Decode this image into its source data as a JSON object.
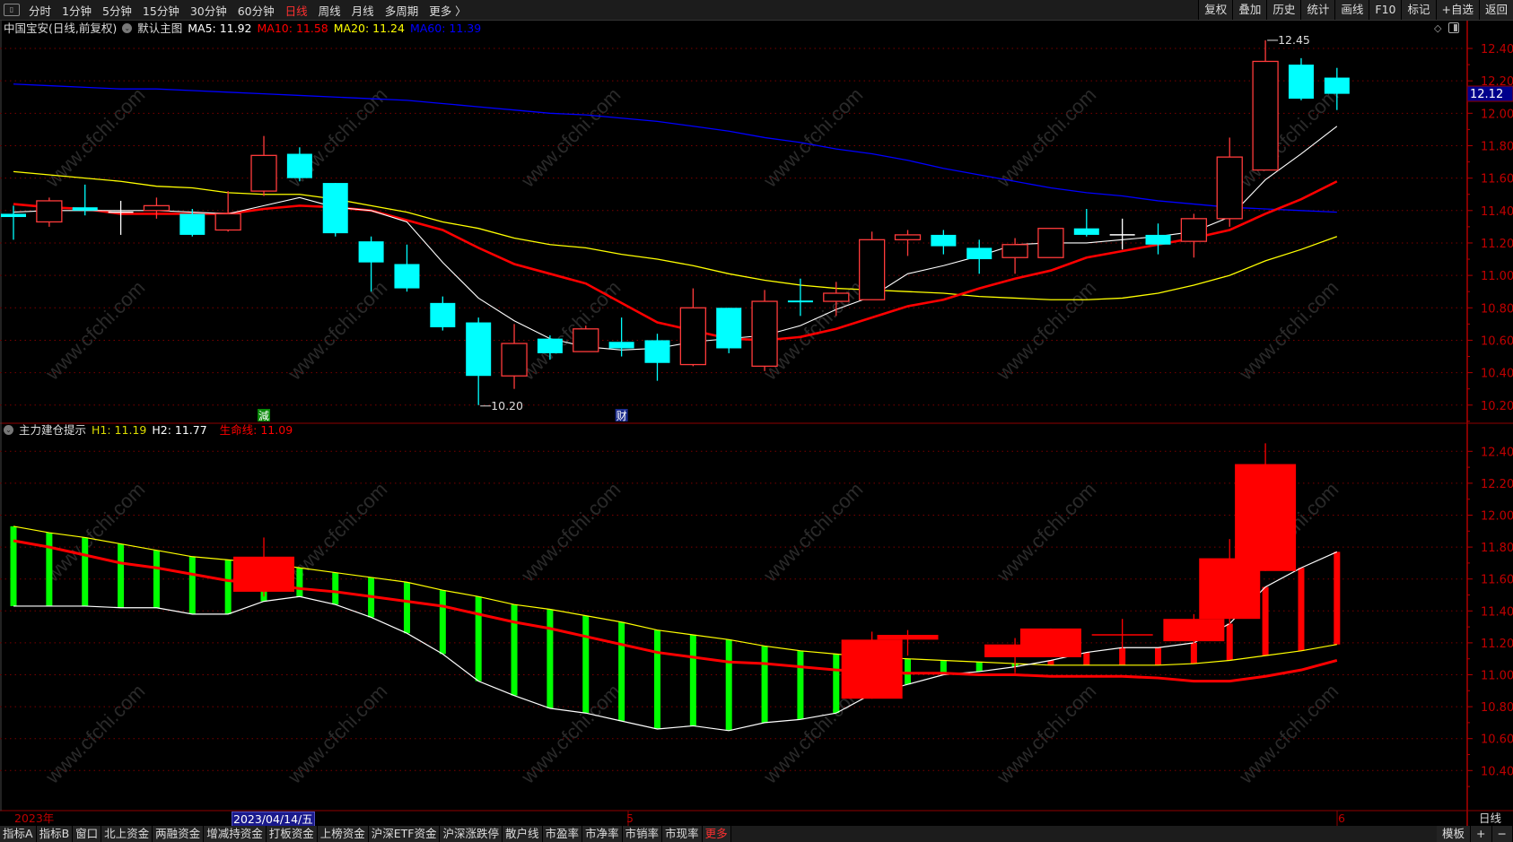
{
  "toolbar": {
    "periods": [
      "分时",
      "1分钟",
      "5分钟",
      "15分钟",
      "30分钟",
      "60分钟",
      "日线",
      "周线",
      "月线",
      "多周期",
      "更多 〉"
    ],
    "active_period": "日线",
    "right_buttons": [
      "复权",
      "叠加",
      "历史",
      "统计",
      "画线",
      "F10",
      "标记",
      "+自选",
      "返回"
    ]
  },
  "main_panel": {
    "title": "中国宝安(日线,前复权)",
    "template": "默认主图",
    "ma5": "MA5: 11.92",
    "ma10": "MA10: 11.58",
    "ma20": "MA20: 11.24",
    "ma60": "MA60: 11.39",
    "current_price": "12.12",
    "high_label": "12.45",
    "low_label": "10.20",
    "markers": [
      {
        "text": "減",
        "candle": 7,
        "color": "#0a8a0a"
      },
      {
        "text": "财",
        "candle": 17,
        "color": "#1c2c8c"
      }
    ],
    "y_ticks": [
      "12.40",
      "12.20",
      "12.00",
      "11.80",
      "11.60",
      "11.40",
      "11.20",
      "11.00",
      "10.80",
      "10.60",
      "10.40",
      "10.20"
    ]
  },
  "sub_panel": {
    "title": "主力建仓提示",
    "h1": "H1: 11.19",
    "h2": "H2: 11.77",
    "life": "生命线: 11.09",
    "y_ticks": [
      "12.40",
      "12.20",
      "12.00",
      "11.80",
      "11.60",
      "11.40",
      "11.20",
      "11.00",
      "10.80",
      "10.60",
      "10.40"
    ]
  },
  "date_axis": {
    "year": "2023年",
    "cursor_date": "2023/04/14/五",
    "month5": "5",
    "month6": "6",
    "period_label": "日线"
  },
  "bottom_tabs": [
    "指标A",
    "指标B",
    "窗口",
    "北上资金",
    "两融资金",
    "增减持资金",
    "打板资金",
    "上榜资金",
    "沪深ETF资金",
    "沪深涨跌停",
    "散户线",
    "市盈率",
    "市净率",
    "市销率",
    "市现率",
    "更多"
  ],
  "bottom_right": [
    "模板",
    "+",
    "−"
  ],
  "watermark": "www.cfchi.com",
  "colors": {
    "up": "#ff3b3b",
    "down": "#00ffff",
    "ma5": "#ffffff",
    "ma10": "#ff0000",
    "ma20": "#ffff00",
    "ma60": "#0000ff",
    "axis": "#b00000",
    "h1": "#ffff00",
    "h2": "#ffffff",
    "life": "#ff0000",
    "bar_up": "#ff0000",
    "bar_down": "#00ff00"
  },
  "chart_data": {
    "type": "candlestick",
    "candles_ohlc": [
      [
        11.38,
        11.43,
        11.22,
        11.36
      ],
      [
        11.33,
        11.48,
        11.3,
        11.46
      ],
      [
        11.42,
        11.56,
        11.37,
        11.4
      ],
      [
        11.39,
        11.46,
        11.25,
        11.39
      ],
      [
        11.4,
        11.48,
        11.35,
        11.43
      ],
      [
        11.38,
        11.41,
        11.24,
        11.25
      ],
      [
        11.28,
        11.52,
        11.27,
        11.38
      ],
      [
        11.52,
        11.86,
        11.49,
        11.74
      ],
      [
        11.75,
        11.79,
        11.58,
        11.6
      ],
      [
        11.57,
        11.57,
        11.24,
        11.26
      ],
      [
        11.21,
        11.24,
        10.9,
        11.08
      ],
      [
        11.07,
        11.19,
        10.9,
        10.92
      ],
      [
        10.83,
        10.87,
        10.66,
        10.68
      ],
      [
        10.71,
        10.74,
        10.2,
        10.38
      ],
      [
        10.38,
        10.7,
        10.3,
        10.58
      ],
      [
        10.61,
        10.63,
        10.48,
        10.52
      ],
      [
        10.53,
        10.69,
        10.53,
        10.67
      ],
      [
        10.59,
        10.74,
        10.5,
        10.55
      ],
      [
        10.6,
        10.64,
        10.35,
        10.46
      ],
      [
        10.45,
        10.92,
        10.44,
        10.8
      ],
      [
        10.8,
        10.8,
        10.52,
        10.55
      ],
      [
        10.44,
        10.91,
        10.41,
        10.84
      ],
      [
        10.845,
        10.98,
        10.75,
        10.84
      ],
      [
        10.84,
        10.96,
        10.75,
        10.89
      ],
      [
        10.85,
        11.27,
        10.85,
        11.22
      ],
      [
        11.22,
        11.28,
        11.12,
        11.25
      ],
      [
        11.25,
        11.28,
        11.13,
        11.18
      ],
      [
        11.17,
        11.22,
        11.01,
        11.1
      ],
      [
        11.11,
        11.23,
        11.01,
        11.19
      ],
      [
        11.11,
        11.29,
        11.11,
        11.29
      ],
      [
        11.29,
        11.41,
        11.24,
        11.25
      ],
      [
        11.25,
        11.35,
        11.16,
        11.25
      ],
      [
        11.25,
        11.32,
        11.13,
        11.19
      ],
      [
        11.21,
        11.38,
        11.11,
        11.35
      ],
      [
        11.35,
        11.85,
        11.3,
        11.73
      ],
      [
        11.65,
        12.45,
        11.65,
        12.32
      ],
      [
        12.3,
        12.34,
        12.08,
        12.09
      ],
      [
        12.22,
        12.28,
        12.02,
        12.12
      ]
    ],
    "ma5": [
      11.39,
      11.4,
      11.4,
      11.4,
      11.4,
      11.39,
      11.38,
      11.43,
      11.48,
      11.42,
      11.4,
      11.33,
      11.08,
      10.86,
      10.72,
      10.61,
      10.56,
      10.54,
      10.55,
      10.59,
      10.61,
      10.63,
      10.69,
      10.79,
      10.87,
      11.01,
      11.06,
      11.12,
      11.19,
      11.2,
      11.2,
      11.22,
      11.24,
      11.27,
      11.36,
      11.59,
      11.75,
      11.92
    ],
    "ma10": [
      11.44,
      11.42,
      11.41,
      11.38,
      11.38,
      11.38,
      11.38,
      11.41,
      11.43,
      11.42,
      11.4,
      11.34,
      11.28,
      11.17,
      11.07,
      11.01,
      10.95,
      10.83,
      10.71,
      10.66,
      10.61,
      10.6,
      10.62,
      10.67,
      10.74,
      10.81,
      10.85,
      10.92,
      10.98,
      11.03,
      11.11,
      11.15,
      11.19,
      11.23,
      11.28,
      11.38,
      11.47,
      11.58
    ],
    "ma20": [
      11.64,
      11.62,
      11.6,
      11.58,
      11.55,
      11.54,
      11.51,
      11.5,
      11.5,
      11.47,
      11.43,
      11.39,
      11.33,
      11.29,
      11.23,
      11.19,
      11.17,
      11.13,
      11.1,
      11.06,
      11.01,
      10.97,
      10.94,
      10.92,
      10.91,
      10.9,
      10.89,
      10.87,
      10.86,
      10.85,
      10.85,
      10.86,
      10.89,
      10.94,
      11.0,
      11.09,
      11.16,
      11.24
    ],
    "ma60": [
      12.18,
      12.17,
      12.16,
      12.15,
      12.15,
      12.14,
      12.13,
      12.12,
      12.11,
      12.1,
      12.09,
      12.08,
      12.06,
      12.04,
      12.02,
      12.0,
      11.99,
      11.97,
      11.95,
      11.92,
      11.89,
      11.85,
      11.82,
      11.78,
      11.75,
      11.71,
      11.66,
      11.62,
      11.58,
      11.54,
      11.51,
      11.49,
      11.46,
      11.44,
      11.42,
      11.41,
      11.4,
      11.39
    ],
    "main_ylim": [
      10.2,
      12.4
    ],
    "sub": {
      "h1": [
        11.93,
        11.89,
        11.86,
        11.82,
        11.78,
        11.74,
        11.72,
        11.7,
        11.67,
        11.64,
        11.61,
        11.58,
        11.53,
        11.49,
        11.44,
        11.41,
        11.37,
        11.33,
        11.28,
        11.25,
        11.22,
        11.18,
        11.15,
        11.13,
        11.11,
        11.1,
        11.09,
        11.08,
        11.07,
        11.06,
        11.06,
        11.06,
        11.06,
        11.07,
        11.09,
        11.12,
        11.15,
        11.19
      ],
      "h2": [
        11.43,
        11.43,
        11.43,
        11.42,
        11.42,
        11.38,
        11.38,
        11.46,
        11.49,
        11.44,
        11.36,
        11.26,
        11.13,
        10.96,
        10.87,
        10.79,
        10.76,
        10.71,
        10.66,
        10.68,
        10.65,
        10.7,
        10.72,
        10.76,
        10.88,
        10.94,
        11.0,
        11.02,
        11.05,
        11.09,
        11.14,
        11.17,
        11.17,
        11.2,
        11.32,
        11.55,
        11.67,
        11.77
      ],
      "life": [
        11.84,
        11.8,
        11.75,
        11.7,
        11.67,
        11.63,
        11.59,
        11.57,
        11.54,
        11.52,
        11.49,
        11.46,
        11.43,
        11.38,
        11.33,
        11.29,
        11.24,
        11.19,
        11.14,
        11.11,
        11.08,
        11.07,
        11.05,
        11.03,
        11.02,
        11.01,
        11.01,
        11.0,
        11.0,
        10.99,
        10.99,
        10.99,
        10.98,
        10.96,
        10.96,
        10.99,
        11.03,
        11.09
      ],
      "signal_candles": [
        7,
        24,
        25,
        28,
        29,
        31,
        33,
        34,
        35
      ],
      "ylim": [
        10.3,
        12.5
      ]
    }
  }
}
